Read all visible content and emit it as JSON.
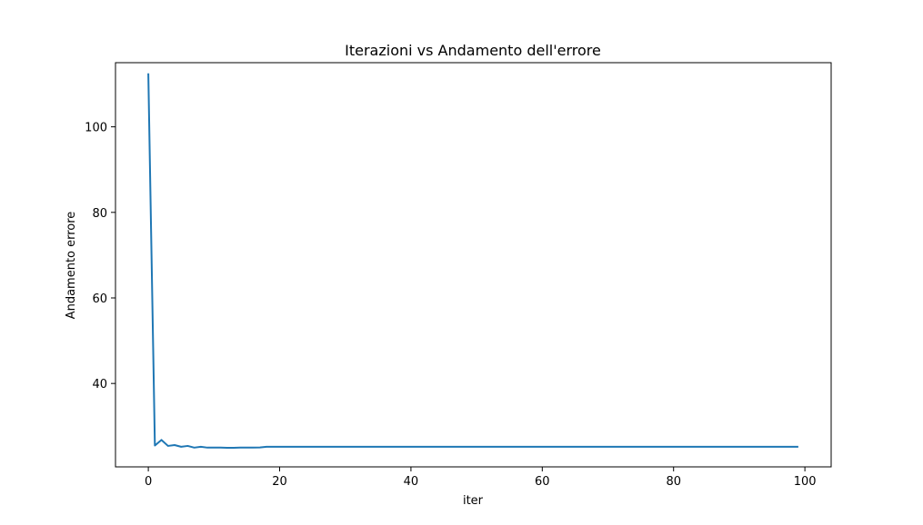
{
  "chart_data": {
    "type": "line",
    "title": "Iterazioni vs Andamento dell'errore",
    "xlabel": "iter",
    "ylabel": "Andamento errore",
    "xlim": [
      -5,
      104
    ],
    "ylim": [
      20.5,
      115
    ],
    "xticks": [
      0,
      20,
      40,
      60,
      80,
      100
    ],
    "yticks": [
      40,
      60,
      80,
      100
    ],
    "grid": false,
    "series": [
      {
        "color": "#1f77b4",
        "x": [
          0,
          1,
          2,
          3,
          4,
          5,
          6,
          7,
          8,
          9,
          10,
          11,
          12,
          13,
          14,
          15,
          16,
          17,
          18,
          19,
          20,
          21,
          22,
          23,
          24,
          25,
          26,
          27,
          28,
          29,
          30,
          31,
          32,
          33,
          34,
          35,
          36,
          37,
          38,
          39,
          40,
          41,
          42,
          43,
          44,
          45,
          46,
          47,
          48,
          49,
          50,
          51,
          52,
          53,
          54,
          55,
          56,
          57,
          58,
          59,
          60,
          61,
          62,
          63,
          64,
          65,
          66,
          67,
          68,
          69,
          70,
          71,
          72,
          73,
          74,
          75,
          76,
          77,
          78,
          79,
          80,
          81,
          82,
          83,
          84,
          85,
          86,
          87,
          88,
          89,
          90,
          91,
          92,
          93,
          94,
          95,
          96,
          97,
          98,
          99
        ],
        "y": [
          112.5,
          25.5,
          26.8,
          25.4,
          25.6,
          25.2,
          25.4,
          25.0,
          25.2,
          25.0,
          25.0,
          25.0,
          24.95,
          24.95,
          25.0,
          25.0,
          25.0,
          25.05,
          25.2,
          25.2,
          25.2,
          25.2,
          25.2,
          25.2,
          25.2,
          25.2,
          25.2,
          25.2,
          25.2,
          25.2,
          25.2,
          25.2,
          25.2,
          25.2,
          25.2,
          25.2,
          25.2,
          25.2,
          25.2,
          25.2,
          25.2,
          25.2,
          25.2,
          25.2,
          25.2,
          25.2,
          25.2,
          25.2,
          25.2,
          25.2,
          25.2,
          25.2,
          25.2,
          25.2,
          25.2,
          25.2,
          25.2,
          25.2,
          25.2,
          25.2,
          25.2,
          25.2,
          25.2,
          25.2,
          25.2,
          25.2,
          25.2,
          25.2,
          25.2,
          25.2,
          25.2,
          25.2,
          25.2,
          25.2,
          25.2,
          25.2,
          25.2,
          25.2,
          25.2,
          25.2,
          25.2,
          25.2,
          25.2,
          25.2,
          25.2,
          25.2,
          25.2,
          25.2,
          25.2,
          25.2,
          25.2,
          25.2,
          25.2,
          25.2,
          25.2,
          25.2,
          25.2,
          25.2,
          25.2,
          25.2
        ]
      }
    ]
  }
}
